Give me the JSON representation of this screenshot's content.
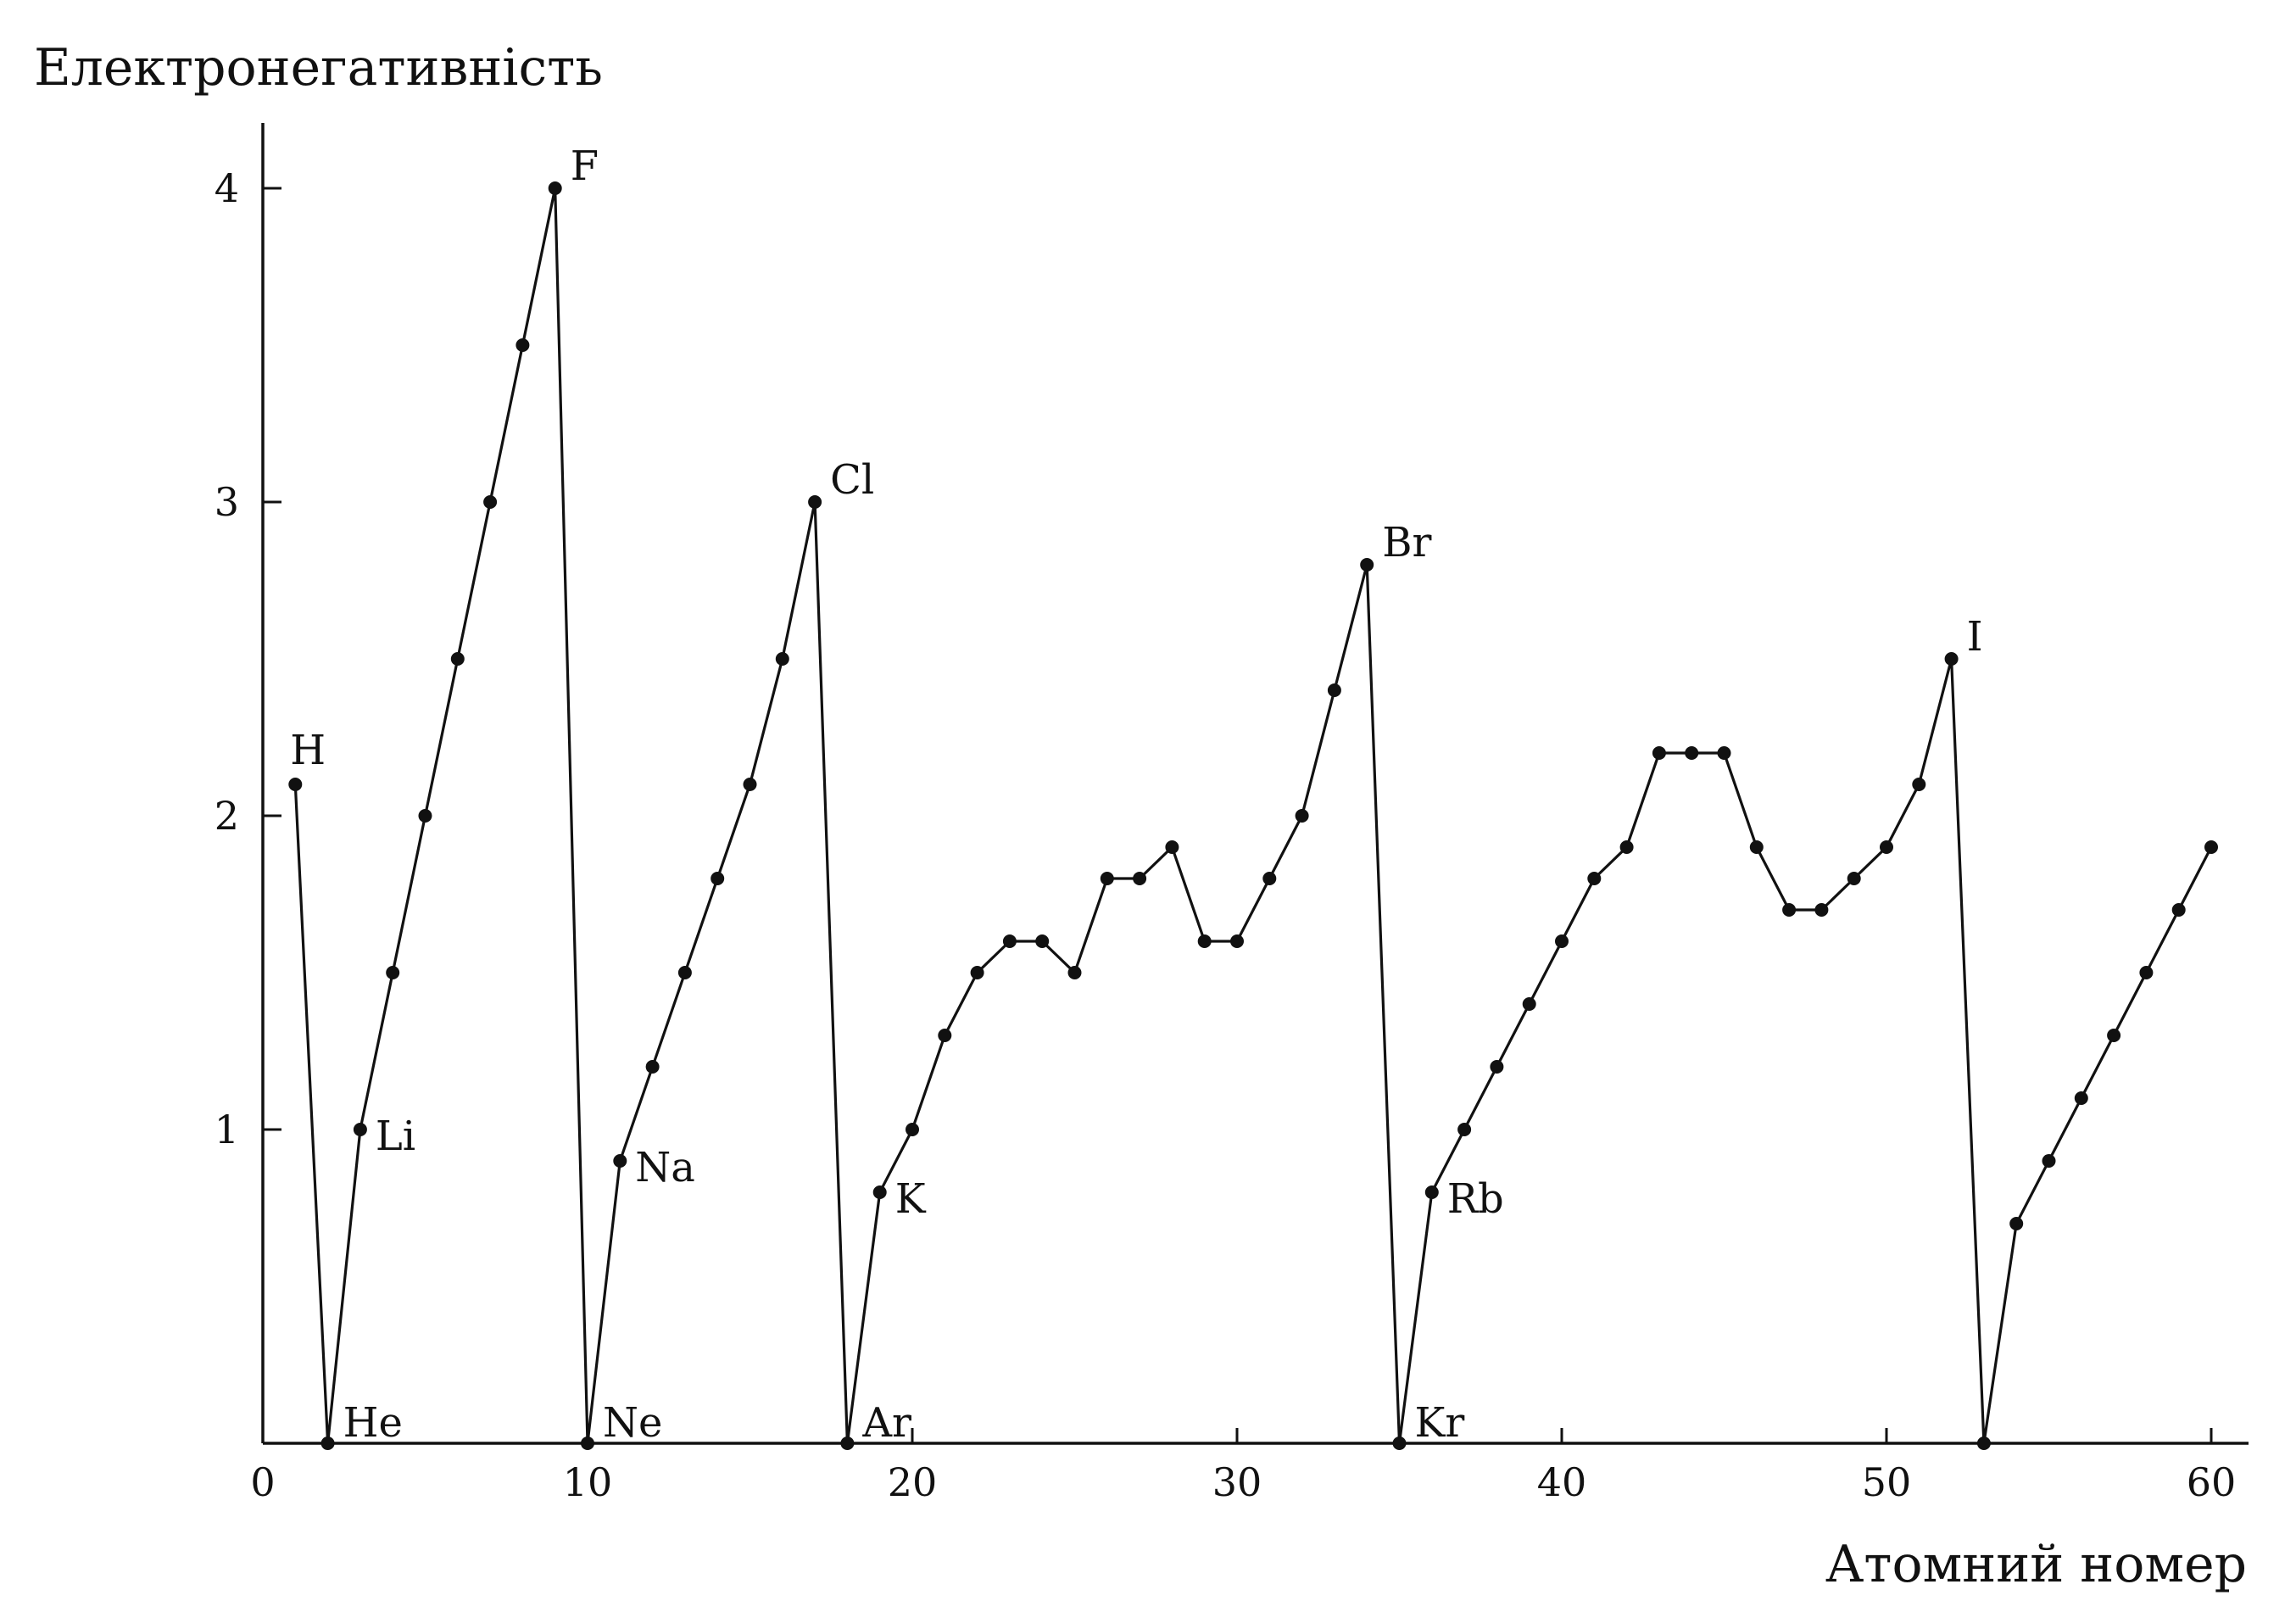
{
  "chart_data": {
    "type": "line",
    "ylabel": "Електронегативність",
    "xlabel": "Атомний номер",
    "xlim": [
      0,
      61
    ],
    "ylim": [
      0,
      4.2
    ],
    "xticks": [
      0,
      10,
      20,
      30,
      40,
      50,
      60
    ],
    "yticks": [
      1,
      2,
      3,
      4
    ],
    "grid": false,
    "series": [
      {
        "points": [
          [
            1,
            2.1
          ],
          [
            2,
            0
          ],
          [
            3,
            1.0
          ],
          [
            4,
            1.5
          ],
          [
            5,
            2.0
          ],
          [
            6,
            2.5
          ],
          [
            7,
            3.0
          ],
          [
            8,
            3.5
          ],
          [
            9,
            4.0
          ],
          [
            10,
            0
          ],
          [
            11,
            0.9
          ],
          [
            12,
            1.2
          ],
          [
            13,
            1.5
          ],
          [
            14,
            1.8
          ],
          [
            15,
            2.1
          ],
          [
            16,
            2.5
          ],
          [
            17,
            3.0
          ],
          [
            18,
            0
          ],
          [
            19,
            0.8
          ],
          [
            20,
            1.0
          ],
          [
            21,
            1.3
          ],
          [
            22,
            1.5
          ],
          [
            23,
            1.6
          ],
          [
            24,
            1.6
          ],
          [
            25,
            1.5
          ],
          [
            26,
            1.8
          ],
          [
            27,
            1.8
          ],
          [
            28,
            1.9
          ],
          [
            29,
            1.6
          ],
          [
            30,
            1.6
          ],
          [
            31,
            1.8
          ],
          [
            32,
            2.0
          ],
          [
            33,
            2.4
          ],
          [
            34,
            2.8
          ],
          [
            35,
            0
          ],
          [
            36,
            0.8
          ],
          [
            37,
            1.0
          ],
          [
            38,
            1.2
          ],
          [
            39,
            1.4
          ],
          [
            40,
            1.6
          ],
          [
            41,
            1.8
          ],
          [
            42,
            1.9
          ],
          [
            43,
            2.2
          ],
          [
            44,
            2.2
          ],
          [
            45,
            2.2
          ],
          [
            46,
            1.9
          ],
          [
            47,
            1.7
          ],
          [
            48,
            1.7
          ],
          [
            49,
            1.8
          ],
          [
            50,
            1.9
          ],
          [
            51,
            2.1
          ],
          [
            52,
            2.5
          ],
          [
            53,
            0
          ],
          [
            54,
            0.7
          ],
          [
            55,
            0.9
          ],
          [
            56,
            1.1
          ],
          [
            57,
            1.3
          ],
          [
            58,
            1.5
          ],
          [
            59,
            1.7
          ],
          [
            60,
            1.9
          ]
        ]
      }
    ],
    "annotations": [
      {
        "text": "H",
        "x": 1,
        "y": 2.1,
        "pos": "above"
      },
      {
        "text": "He",
        "x": 2,
        "y": 0,
        "pos": "right"
      },
      {
        "text": "Li",
        "x": 3,
        "y": 1.0,
        "pos": "right"
      },
      {
        "text": "F",
        "x": 9,
        "y": 4.0,
        "pos": "right"
      },
      {
        "text": "Ne",
        "x": 10,
        "y": 0,
        "pos": "right"
      },
      {
        "text": "Na",
        "x": 11,
        "y": 0.9,
        "pos": "right"
      },
      {
        "text": "Cl",
        "x": 17,
        "y": 3.0,
        "pos": "right"
      },
      {
        "text": "Ar",
        "x": 18,
        "y": 0,
        "pos": "right"
      },
      {
        "text": "K",
        "x": 19,
        "y": 0.8,
        "pos": "right"
      },
      {
        "text": "Br",
        "x": 34,
        "y": 2.8,
        "pos": "right"
      },
      {
        "text": "Kr",
        "x": 35,
        "y": 0,
        "pos": "right"
      },
      {
        "text": "Rb",
        "x": 36,
        "y": 0.8,
        "pos": "right"
      },
      {
        "text": "I",
        "x": 52,
        "y": 2.5,
        "pos": "right"
      }
    ]
  }
}
